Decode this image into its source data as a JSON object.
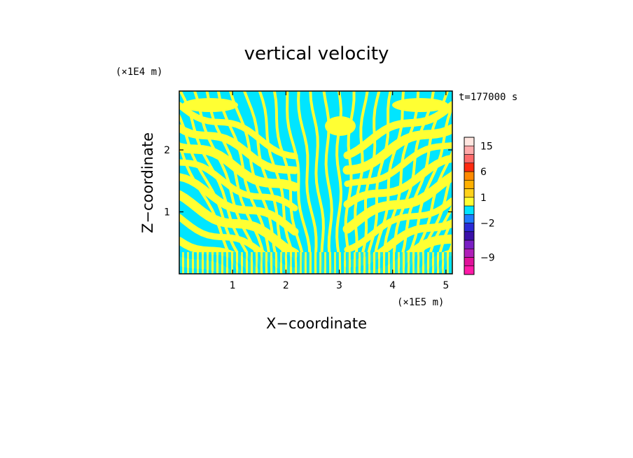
{
  "chart_data": {
    "type": "heatmap",
    "title": "vertical velocity",
    "xlabel": "X−coordinate",
    "ylabel": "Z−coordinate",
    "x_unit": "(×1E5 m)",
    "y_unit": "(×1E4 m)",
    "time_label": "t=177000  s",
    "xlim": [
      0,
      5.12
    ],
    "ylim": [
      0,
      2.95
    ],
    "x_ticks": [
      "1",
      "2",
      "3",
      "4",
      "5"
    ],
    "x_tick_values": [
      1,
      2,
      3,
      4,
      5
    ],
    "y_ticks": [
      "1",
      "2"
    ],
    "y_tick_values": [
      1,
      2
    ],
    "field_colors": {
      "positive": "#ffff33",
      "negative": "#00e5ff"
    },
    "colorbar": {
      "labels": [
        "15",
        "6",
        "1",
        "−2",
        "−9"
      ],
      "label_values": [
        15,
        6,
        1,
        -2,
        -9
      ],
      "levels": [
        {
          "color": "#ff1aa8",
          "from": -15,
          "to": -12
        },
        {
          "color": "#e0129a",
          "from": -12,
          "to": -9
        },
        {
          "color": "#b01fb8",
          "from": -9,
          "to": -6
        },
        {
          "color": "#7a1fc4",
          "from": -6,
          "to": -4
        },
        {
          "color": "#3a10a8",
          "from": -4,
          "to": -3
        },
        {
          "color": "#2a2ad6",
          "from": -3,
          "to": -2
        },
        {
          "color": "#1f7bff",
          "from": -2,
          "to": -1
        },
        {
          "color": "#00e5ff",
          "from": -1,
          "to": 0
        },
        {
          "color": "#ffff33",
          "from": 0,
          "to": 1
        },
        {
          "color": "#ffd21a",
          "from": 1,
          "to": 2
        },
        {
          "color": "#ffb000",
          "from": 2,
          "to": 3
        },
        {
          "color": "#ff8a00",
          "from": 3,
          "to": 6
        },
        {
          "color": "#ff2a10",
          "from": 6,
          "to": 9
        },
        {
          "color": "#ff6a6a",
          "from": 9,
          "to": 12
        },
        {
          "color": "#ffaaaa",
          "from": 12,
          "to": 15
        },
        {
          "color": "#ffe6e0",
          "from": 15,
          "to": 20
        }
      ]
    },
    "grid": false
  }
}
